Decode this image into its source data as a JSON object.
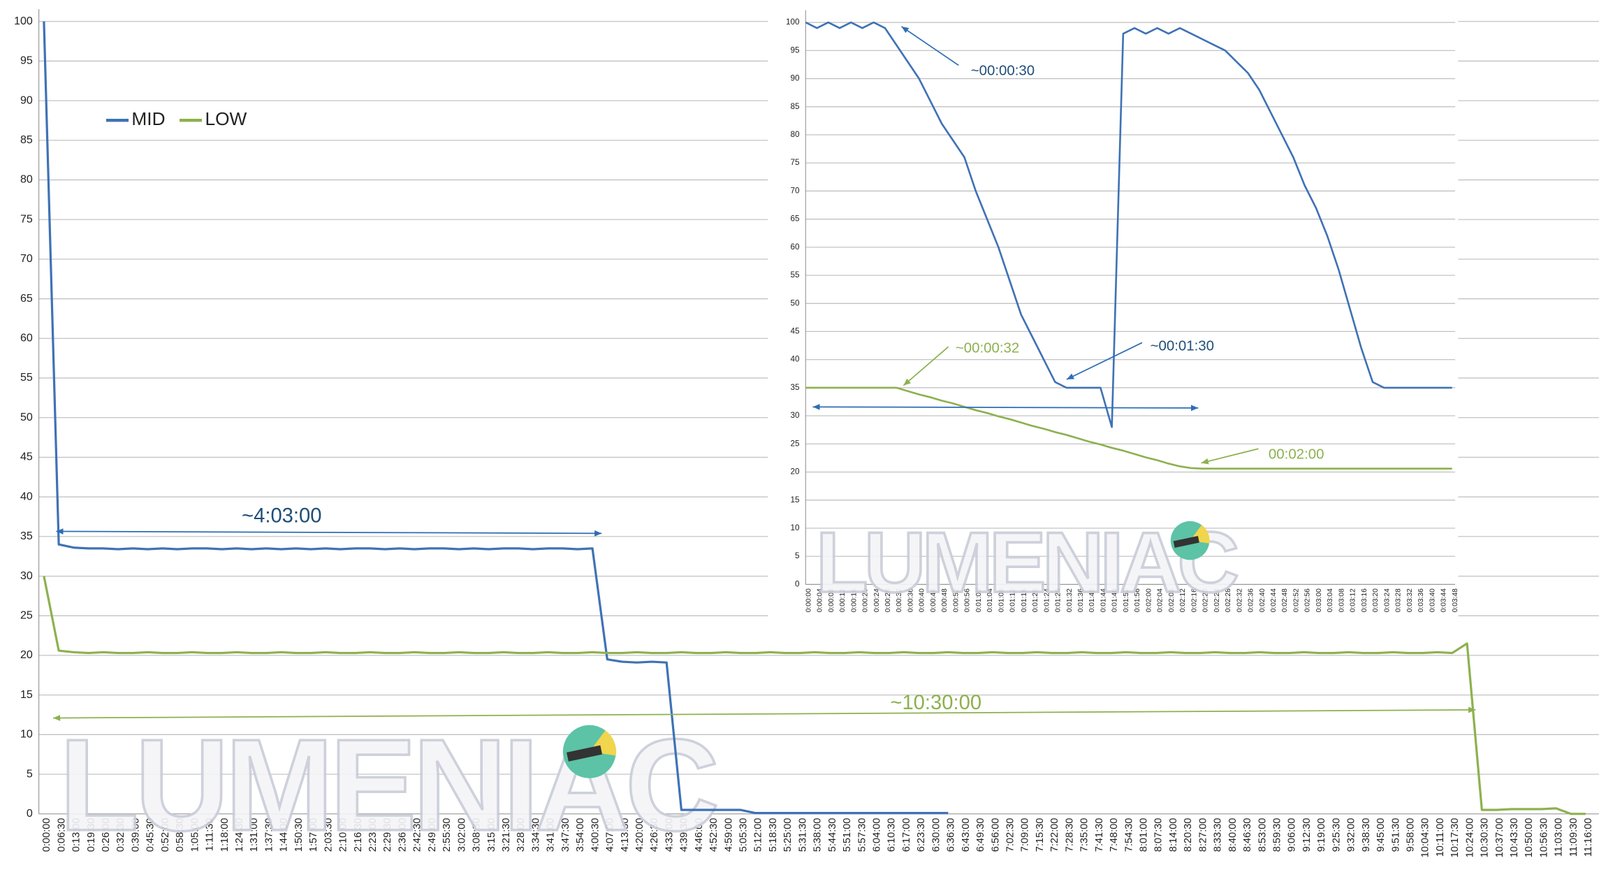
{
  "chart_data": [
    {
      "type": "line",
      "legend": "upper left",
      "grid": true,
      "watermark": "LUMENIAC",
      "categories": [
        "0:00:00",
        "0:06:30",
        "0:13:00",
        "0:19:30",
        "0:26:00",
        "0:32:30",
        "0:39:00",
        "0:45:30",
        "0:52:00",
        "0:58:30",
        "1:05:00",
        "1:11:30",
        "1:18:00",
        "1:24:30",
        "1:31:00",
        "1:37:30",
        "1:44:00",
        "1:50:30",
        "1:57:00",
        "2:03:30",
        "2:10:00",
        "2:16:30",
        "2:23:00",
        "2:29:30",
        "2:36:00",
        "2:42:30",
        "2:49:00",
        "2:55:30",
        "3:02:00",
        "3:08:30",
        "3:15:00",
        "3:21:30",
        "3:28:00",
        "3:34:30",
        "3:41:00",
        "3:47:30",
        "3:54:00",
        "4:00:30",
        "4:07:00",
        "4:13:30",
        "4:20:00",
        "4:26:30",
        "4:33:00",
        "4:39:30",
        "4:46:00",
        "4:52:30",
        "4:59:00",
        "5:05:30",
        "5:12:00",
        "5:18:30",
        "5:25:00",
        "5:31:30",
        "5:38:00",
        "5:44:30",
        "5:51:00",
        "5:57:30",
        "6:04:00",
        "6:10:30",
        "6:17:00",
        "6:23:30",
        "6:30:00",
        "6:36:30",
        "6:43:00",
        "6:49:30",
        "6:56:00",
        "7:02:30",
        "7:09:00",
        "7:15:30",
        "7:22:00",
        "7:28:30",
        "7:35:00",
        "7:41:30",
        "7:48:00",
        "7:54:30",
        "8:01:00",
        "8:07:30",
        "8:14:00",
        "8:20:30",
        "8:27:00",
        "8:33:30",
        "8:40:00",
        "8:46:30",
        "8:53:00",
        "8:59:30",
        "9:06:00",
        "9:12:30",
        "9:19:00",
        "9:25:30",
        "9:32:00",
        "9:38:30",
        "9:45:00",
        "9:51:30",
        "9:58:00",
        "10:04:30",
        "10:11:00",
        "10:17:30",
        "10:24:00",
        "10:30:30",
        "10:37:00",
        "10:43:30",
        "10:50:00",
        "10:56:30",
        "11:03:00",
        "11:09:30",
        "11:16:00"
      ],
      "series": [
        {
          "name": "MID",
          "color": "#3f72b5",
          "values": [
            100,
            34,
            33.6,
            33.5,
            33.5,
            33.4,
            33.5,
            33.4,
            33.5,
            33.4,
            33.5,
            33.5,
            33.4,
            33.5,
            33.4,
            33.5,
            33.4,
            33.5,
            33.4,
            33.5,
            33.4,
            33.5,
            33.5,
            33.4,
            33.5,
            33.4,
            33.5,
            33.5,
            33.4,
            33.5,
            33.4,
            33.5,
            33.5,
            33.4,
            33.5,
            33.5,
            33.4,
            33.5,
            19.5,
            19.2,
            19.1,
            19.2,
            19.1,
            0.5,
            0.5,
            0.5,
            0.5,
            0.5,
            0.1,
            0.1,
            0.1,
            0.1,
            0.1,
            0.1,
            0.1,
            0.1,
            0.1,
            0.1,
            0.1,
            0.1,
            0.1,
            0.1,
            null,
            null,
            null,
            null,
            null,
            null,
            null,
            null,
            null,
            null,
            null,
            null,
            null,
            null,
            null,
            null,
            null,
            null,
            null,
            null,
            null,
            null,
            null,
            null,
            null,
            null,
            null,
            null,
            null,
            null,
            null,
            null,
            null,
            null,
            null,
            null,
            null,
            null,
            null,
            null,
            null,
            null,
            null
          ]
        },
        {
          "name": "LOW",
          "color": "#8db14f",
          "values": [
            30,
            20.6,
            20.4,
            20.3,
            20.4,
            20.3,
            20.3,
            20.4,
            20.3,
            20.3,
            20.4,
            20.3,
            20.3,
            20.4,
            20.3,
            20.3,
            20.4,
            20.3,
            20.3,
            20.4,
            20.3,
            20.3,
            20.4,
            20.3,
            20.3,
            20.4,
            20.3,
            20.3,
            20.4,
            20.3,
            20.3,
            20.4,
            20.3,
            20.3,
            20.4,
            20.3,
            20.3,
            20.4,
            20.3,
            20.3,
            20.4,
            20.3,
            20.3,
            20.4,
            20.3,
            20.3,
            20.4,
            20.3,
            20.3,
            20.4,
            20.3,
            20.3,
            20.4,
            20.3,
            20.3,
            20.4,
            20.3,
            20.3,
            20.4,
            20.3,
            20.3,
            20.4,
            20.3,
            20.3,
            20.4,
            20.3,
            20.3,
            20.4,
            20.3,
            20.3,
            20.4,
            20.3,
            20.3,
            20.4,
            20.3,
            20.3,
            20.4,
            20.3,
            20.3,
            20.4,
            20.3,
            20.3,
            20.4,
            20.3,
            20.3,
            20.4,
            20.3,
            20.3,
            20.4,
            20.3,
            20.3,
            20.4,
            20.3,
            20.3,
            20.4,
            20.3,
            21.5,
            0.5,
            0.5,
            0.6,
            0.6,
            0.6,
            0.7,
            0,
            0
          ]
        }
      ],
      "ylim": [
        0,
        100
      ],
      "yticks": [
        0,
        5,
        10,
        15,
        20,
        25,
        30,
        35,
        40,
        45,
        50,
        55,
        60,
        65,
        70,
        75,
        80,
        85,
        90,
        95,
        100
      ],
      "annotations": [
        "~4:03:00",
        "~10:30:00"
      ]
    },
    {
      "type": "line",
      "grid": true,
      "watermark": "LUMENIAC",
      "categories": [
        "0:00:00",
        "0:00:04",
        "0:00:08",
        "0:00:12",
        "0:00:16",
        "0:00:20",
        "0:00:24",
        "0:00:28",
        "0:00:32",
        "0:00:36",
        "0:00:40",
        "0:00:44",
        "0:00:48",
        "0:00:52",
        "0:00:56",
        "0:01:00",
        "0:01:04",
        "0:01:08",
        "0:01:12",
        "0:01:16",
        "0:01:20",
        "0:01:24",
        "0:01:28",
        "0:01:32",
        "0:01:36",
        "0:01:40",
        "0:01:44",
        "0:01:48",
        "0:01:52",
        "0:01:56",
        "0:02:00",
        "0:02:04",
        "0:02:08",
        "0:02:12",
        "0:02:16",
        "0:02:20",
        "0:02:24",
        "0:02:28",
        "0:02:32",
        "0:02:36",
        "0:02:40",
        "0:02:44",
        "0:02:48",
        "0:02:52",
        "0:02:56",
        "0:03:00",
        "0:03:04",
        "0:03:08",
        "0:03:12",
        "0:03:16",
        "0:03:20",
        "0:03:24",
        "0:03:28",
        "0:03:32",
        "0:03:36",
        "0:03:40",
        "0:03:44",
        "0:03:48"
      ],
      "series": [
        {
          "color": "#3f72b5",
          "values": [
            100,
            99,
            100,
            99,
            100,
            99,
            100,
            99,
            96,
            93,
            90,
            86,
            82,
            79,
            76,
            70,
            65,
            60,
            54,
            48,
            44,
            40,
            36,
            35,
            35,
            35,
            35,
            28,
            98,
            99,
            98,
            99,
            98,
            99,
            98,
            97,
            96,
            95,
            93,
            91,
            88,
            84,
            80,
            76,
            71,
            67,
            62,
            56,
            49,
            42,
            36,
            35,
            35,
            35,
            35,
            35,
            35,
            35
          ]
        },
        {
          "color": "#8db14f",
          "values": [
            35,
            35,
            35,
            35,
            35,
            35,
            35,
            35,
            35,
            34.4,
            33.8,
            33.3,
            32.7,
            32.2,
            31.6,
            31,
            30.5,
            29.9,
            29.4,
            28.8,
            28.2,
            27.7,
            27.1,
            26.6,
            26,
            25.4,
            24.9,
            24.3,
            23.8,
            23.2,
            22.6,
            22.1,
            21.5,
            21,
            20.7,
            20.6,
            20.6,
            20.6,
            20.6,
            20.6,
            20.6,
            20.6,
            20.6,
            20.6,
            20.6,
            20.6,
            20.6,
            20.6,
            20.6,
            20.6,
            20.6,
            20.6,
            20.6,
            20.6,
            20.6,
            20.6,
            20.6,
            20.6
          ]
        }
      ],
      "ylim": [
        0,
        100
      ],
      "yticks": [
        0,
        5,
        10,
        15,
        20,
        25,
        30,
        35,
        40,
        45,
        50,
        55,
        60,
        65,
        70,
        75,
        80,
        85,
        90,
        95,
        100
      ],
      "annotations": [
        "~00:00:30",
        "~00:00:32",
        "~00:01:30",
        "00:02:00"
      ]
    }
  ]
}
